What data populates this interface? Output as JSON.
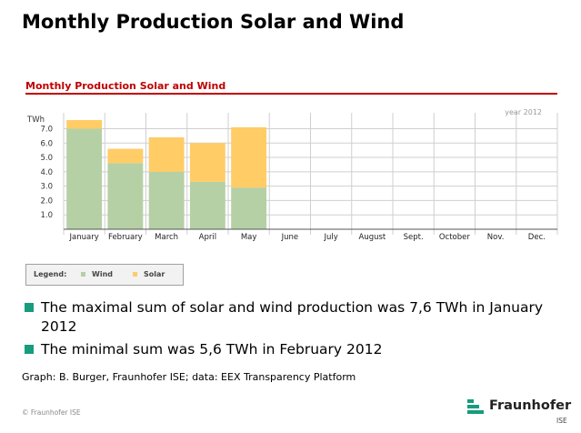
{
  "slide": {
    "title": "Monthly Production Solar and Wind",
    "bullets": [
      "The maximal sum of solar and wind production was 7,6 TWh in January 2012",
      "The minimal sum was 5,6 TWh in February 2012"
    ],
    "source": "Graph: B. Burger, Fraunhofer ISE; data: EEX Transparency Platform",
    "copyright": "© Fraunhofer ISE",
    "logo": {
      "name": "Fraunhofer",
      "sub": "ISE"
    }
  },
  "legend": {
    "label": "Legend:",
    "items": [
      {
        "name": "Wind",
        "color": "#b5d0a5"
      },
      {
        "name": "Solar",
        "color": "#ffcc66"
      }
    ]
  },
  "chart_data": {
    "type": "bar",
    "stacked": true,
    "title": "Monthly Production Solar and Wind",
    "annotation": "year 2012",
    "ylabel": "TWh",
    "ylim": [
      0,
      7.6
    ],
    "yticks": [
      "1.0",
      "2.0",
      "3.0",
      "4.0",
      "5.0",
      "6.0",
      "7.0"
    ],
    "grid": true,
    "legend_position": "bottom-left",
    "categories": [
      "January",
      "February",
      "March",
      "April",
      "May",
      "June",
      "July",
      "August",
      "Sept.",
      "October",
      "Nov.",
      "Dec."
    ],
    "series": [
      {
        "name": "Wind",
        "color": "#b5d0a5",
        "values": [
          7.0,
          4.6,
          4.0,
          3.3,
          2.9,
          null,
          null,
          null,
          null,
          null,
          null,
          null
        ]
      },
      {
        "name": "Solar",
        "color": "#ffcc66",
        "values": [
          0.6,
          1.0,
          2.4,
          2.7,
          4.2,
          null,
          null,
          null,
          null,
          null,
          null,
          null
        ]
      }
    ]
  }
}
